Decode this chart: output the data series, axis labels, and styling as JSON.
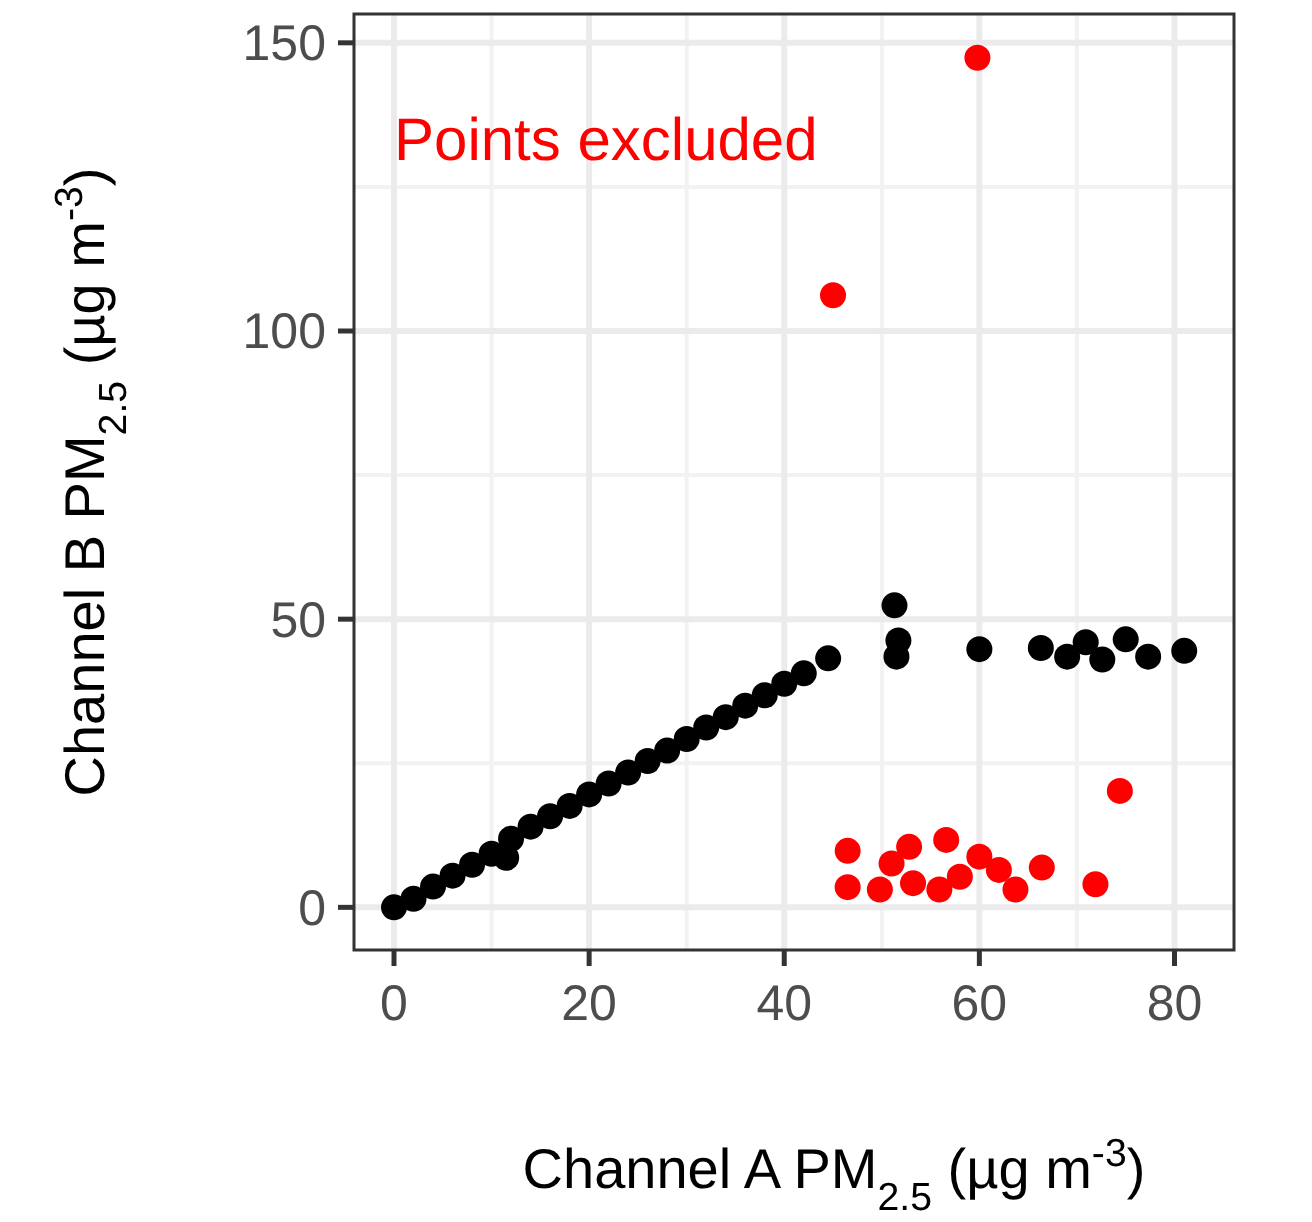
{
  "chart_data": {
    "type": "scatter",
    "xlabel": "Channel A PM$_{2.5}$ (µg m$^{-3}$)",
    "ylabel": "Channel B PM$_{2.5}$ (µg m$^{-3}$)",
    "annotations": [
      "Points excluded"
    ],
    "xlim": [
      -4.1,
      86.1
    ],
    "xticks": [
      0,
      20,
      40,
      60,
      80
    ],
    "ylim": [
      -7.4,
      155
    ],
    "yticks": [
      0,
      50,
      100,
      150
    ],
    "grid": true,
    "marker": "circle",
    "series": [
      {
        "color": "#000000",
        "x": [
          0,
          2,
          4,
          6,
          8,
          10,
          11.5,
          12,
          14,
          16,
          18,
          20,
          22,
          24,
          26,
          28,
          30,
          32,
          34,
          36,
          38,
          40,
          42,
          44.5,
          51.3,
          51.7,
          51.5,
          60,
          66.3,
          69,
          70.9,
          72.6,
          75,
          77.3,
          81
        ],
        "values": [
          0,
          1.5,
          3.6,
          5.5,
          7.4,
          9.3,
          8.6,
          11.9,
          14,
          15.8,
          17.6,
          19.6,
          21.5,
          23.4,
          25.4,
          27.2,
          29.2,
          31.2,
          33,
          35,
          36.8,
          38.8,
          40.6,
          43.2,
          52.4,
          46.3,
          43.5,
          44.8,
          45,
          43.5,
          46,
          43,
          46.5,
          43.5,
          44.5
        ]
      },
      {
        "color": "#ff0000",
        "x": [
          59.8,
          45,
          74.4,
          71.9,
          66.4,
          46.5,
          46.5,
          49.8,
          52.8,
          53.2,
          56.6,
          55.9,
          60,
          62,
          63.7,
          58,
          51
        ],
        "values": [
          147.4,
          106.2,
          20.2,
          4,
          6.9,
          9.8,
          3.5,
          3.1,
          10.5,
          4.2,
          11.7,
          3.1,
          8.8,
          6.5,
          3.1,
          5.3,
          7.6
        ]
      }
    ]
  }
}
